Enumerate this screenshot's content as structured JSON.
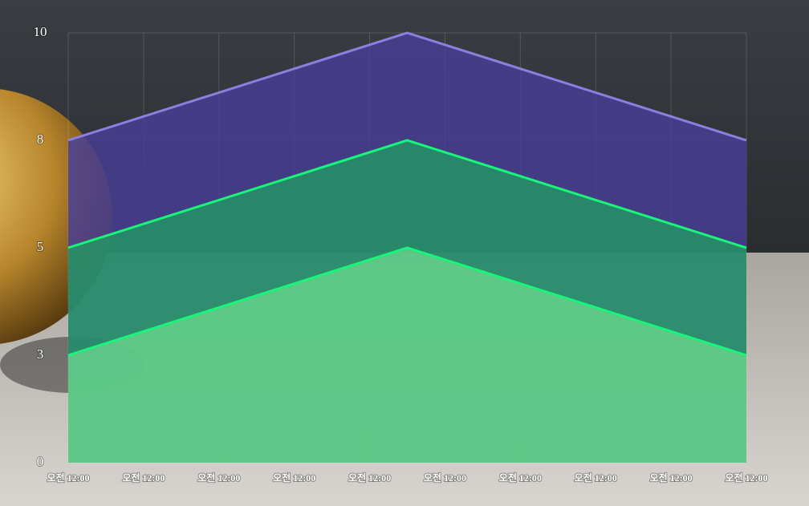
{
  "chart_data": {
    "type": "area",
    "x": [
      0,
      4.5,
      9
    ],
    "series": [
      {
        "color": "#8a80e0",
        "values": [
          7.5,
          10,
          7.5
        ]
      },
      {
        "color": "#19f57a",
        "values": [
          5,
          7.5,
          5
        ]
      },
      {
        "color": "#19f57a",
        "values": [
          2.5,
          5,
          2.5
        ]
      }
    ],
    "xlim": [
      0,
      9
    ],
    "xticks": [
      {
        "value": 0,
        "label": "오전 12:00"
      },
      {
        "value": 1,
        "label": "오전 12:00"
      },
      {
        "value": 2,
        "label": "오전 12:00"
      },
      {
        "value": 3,
        "label": "오전 12:00"
      },
      {
        "value": 4,
        "label": "오전 12:00"
      },
      {
        "value": 5,
        "label": "오전 12:00"
      },
      {
        "value": 6,
        "label": "오전 12:00"
      },
      {
        "value": 7,
        "label": "오전 12:00"
      },
      {
        "value": 8,
        "label": "오전 12:00"
      },
      {
        "value": 9,
        "label": "오전 12:00"
      }
    ],
    "ylim": [
      0,
      10
    ],
    "yticks": [
      0,
      {
        "value": 2.5,
        "label": "3"
      },
      5,
      {
        "value": 7.5,
        "label": "8"
      },
      10
    ],
    "grid": true
  }
}
